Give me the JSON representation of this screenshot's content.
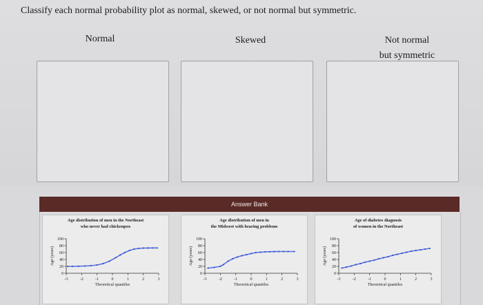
{
  "question": "Classify each normal probability plot as normal, skewed, or not normal but symmetric.",
  "categories": [
    {
      "line1": "Normal",
      "line2": ""
    },
    {
      "line1": "Skewed",
      "line2": ""
    },
    {
      "line1": "Not normal",
      "line2": "but symmetric"
    }
  ],
  "answer_bank": {
    "header": "Answer Bank",
    "cards": [
      {
        "title_line1": "Age distribution of men in the Northeast",
        "title_line2": "who never had chickenpox",
        "xlabel": "Theoretical quantiles",
        "ylabel": "Age (years)",
        "xticks": [
          "-3",
          "-2",
          "-1",
          "0",
          "1",
          "2",
          "3"
        ],
        "yticks": [
          "100",
          "80",
          "60",
          "40",
          "20",
          "0"
        ],
        "chart_data": {
          "type": "scatter",
          "x_range": [
            -3,
            3
          ],
          "y_range": [
            0,
            100
          ],
          "points": [
            [
              -2.9,
              20
            ],
            [
              -2.6,
              20
            ],
            [
              -2.2,
              20.3
            ],
            [
              -1.8,
              21
            ],
            [
              -1.4,
              22
            ],
            [
              -1.0,
              24
            ],
            [
              -0.6,
              28
            ],
            [
              -0.2,
              35
            ],
            [
              0.2,
              45
            ],
            [
              0.5,
              53
            ],
            [
              0.8,
              60
            ],
            [
              1.1,
              66
            ],
            [
              1.4,
              70
            ],
            [
              1.7,
              72
            ],
            [
              2.0,
              73
            ],
            [
              2.3,
              73.2
            ],
            [
              2.6,
              73.4
            ],
            [
              2.9,
              73.5
            ]
          ]
        }
      },
      {
        "title_line1": "Age distribution of men in",
        "title_line2": "the Midwest with hearing problems",
        "xlabel": "Theoretical quantiles",
        "ylabel": "Age (years)",
        "xticks": [
          "-3",
          "-2",
          "-1",
          "0",
          "1",
          "2",
          "3"
        ],
        "yticks": [
          "100",
          "80",
          "60",
          "40",
          "20",
          "0"
        ],
        "chart_data": {
          "type": "scatter",
          "x_range": [
            -3,
            3
          ],
          "y_range": [
            0,
            100
          ],
          "points": [
            [
              -2.8,
              15
            ],
            [
              -2.4,
              17
            ],
            [
              -2.0,
              20
            ],
            [
              -1.8,
              25
            ],
            [
              -1.5,
              35
            ],
            [
              -1.2,
              42
            ],
            [
              -0.9,
              47
            ],
            [
              -0.6,
              51
            ],
            [
              -0.3,
              54
            ],
            [
              0.0,
              57
            ],
            [
              0.3,
              60
            ],
            [
              0.6,
              61
            ],
            [
              0.9,
              62
            ],
            [
              1.2,
              62.5
            ],
            [
              1.5,
              62.8
            ],
            [
              1.8,
              63
            ],
            [
              2.1,
              63
            ],
            [
              2.4,
              63
            ],
            [
              2.8,
              63
            ]
          ]
        }
      },
      {
        "title_line1": "Age of diabetes diagnosis",
        "title_line2": "of women in the Northeast",
        "xlabel": "Theoretical quantiles",
        "ylabel": "Age (years)",
        "xticks": [
          "-3",
          "-2",
          "-1",
          "0",
          "1",
          "2",
          "3"
        ],
        "yticks": [
          "100",
          "80",
          "60",
          "40",
          "20",
          "0"
        ],
        "chart_data": {
          "type": "scatter",
          "x_range": [
            -3,
            3
          ],
          "y_range": [
            0,
            100
          ],
          "points": [
            [
              -2.8,
              15
            ],
            [
              -2.5,
              18
            ],
            [
              -2.2,
              21
            ],
            [
              -1.9,
              25
            ],
            [
              -1.6,
              28
            ],
            [
              -1.3,
              32
            ],
            [
              -1.0,
              35
            ],
            [
              -0.7,
              38
            ],
            [
              -0.4,
              42
            ],
            [
              -0.1,
              45
            ],
            [
              0.2,
              48
            ],
            [
              0.5,
              52
            ],
            [
              0.8,
              55
            ],
            [
              1.1,
              58
            ],
            [
              1.4,
              61
            ],
            [
              1.7,
              64
            ],
            [
              2.0,
              66
            ],
            [
              2.3,
              68
            ],
            [
              2.6,
              70
            ],
            [
              2.9,
              72
            ]
          ]
        }
      }
    ]
  }
}
